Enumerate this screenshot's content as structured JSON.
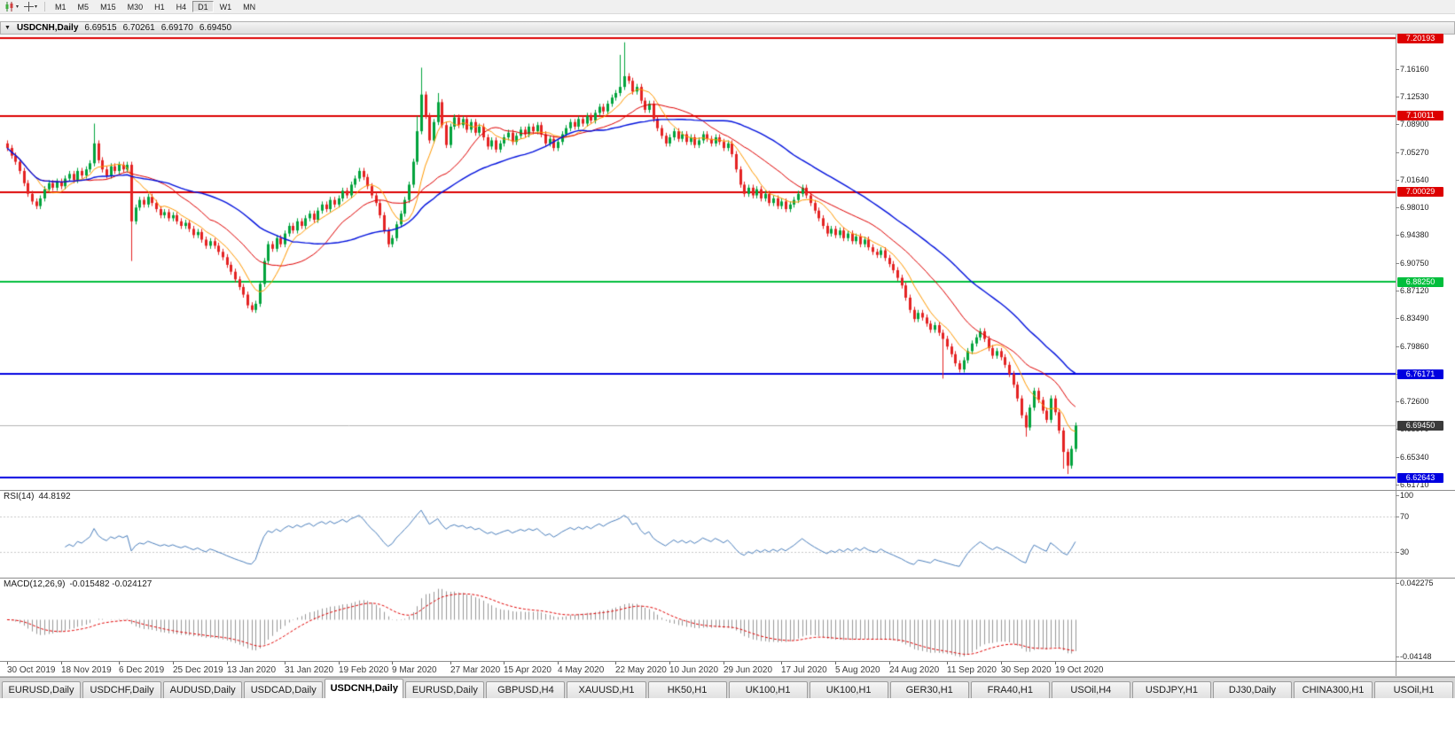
{
  "toolbar": {
    "icons": [
      {
        "name": "candlestick-chart-icon"
      },
      {
        "name": "crosshair-icon"
      }
    ],
    "timeframes": [
      "M1",
      "M5",
      "M15",
      "M30",
      "H1",
      "H4",
      "D1",
      "W1",
      "MN"
    ],
    "active_timeframe": "D1"
  },
  "window": {
    "title": "USDCNH,Daily",
    "ohlc": [
      "6.69515",
      "6.70261",
      "6.69170",
      "6.69450"
    ]
  },
  "chart_data": {
    "type": "candlestick",
    "symbol": "USDCNH",
    "timeframe": "Daily",
    "ylim": [
      6.6102,
      7.2066
    ],
    "grid": false,
    "first_open": 7.064,
    "closes": [
      7.058,
      7.048,
      7.04,
      7.028,
      7.012,
      6.998,
      6.988,
      6.982,
      6.992,
      7.004,
      7.012,
      7.006,
      7.014,
      7.008,
      7.018,
      7.024,
      7.016,
      7.028,
      7.022,
      7.03,
      7.038,
      7.064,
      7.042,
      7.03,
      7.022,
      7.034,
      7.028,
      7.036,
      7.03,
      7.036,
      6.962,
      6.98,
      6.99,
      6.984,
      6.994,
      6.986,
      6.978,
      6.97,
      6.974,
      6.966,
      6.97,
      6.962,
      6.956,
      6.96,
      6.952,
      6.944,
      6.948,
      6.938,
      6.93,
      6.936,
      6.93,
      6.922,
      6.915,
      6.905,
      6.896,
      6.886,
      6.876,
      6.866,
      6.852,
      6.846,
      6.854,
      6.88,
      6.91,
      6.932,
      6.926,
      6.94,
      6.932,
      6.946,
      6.956,
      6.95,
      6.962,
      6.956,
      6.966,
      6.972,
      6.964,
      6.976,
      6.984,
      6.978,
      6.99,
      6.984,
      6.992,
      7.002,
      6.996,
      7.01,
      7.018,
      7.028,
      7.02,
      7.008,
      6.996,
      6.986,
      6.97,
      6.95,
      6.932,
      6.94,
      6.958,
      6.972,
      6.99,
      7.01,
      7.04,
      7.08,
      7.128,
      7.1,
      7.068,
      7.092,
      7.118,
      7.088,
      7.062,
      7.086,
      7.098,
      7.088,
      7.096,
      7.082,
      7.092,
      7.078,
      7.086,
      7.072,
      7.06,
      7.068,
      7.056,
      7.064,
      7.072,
      7.078,
      7.066,
      7.074,
      7.082,
      7.076,
      7.086,
      7.08,
      7.088,
      7.076,
      7.064,
      7.07,
      7.058,
      7.066,
      7.076,
      7.084,
      7.092,
      7.086,
      7.096,
      7.09,
      7.1,
      7.094,
      7.104,
      7.112,
      7.106,
      7.116,
      7.124,
      7.13,
      7.138,
      7.152,
      7.146,
      7.132,
      7.138,
      7.12,
      7.108,
      7.116,
      7.096,
      7.084,
      7.074,
      7.064,
      7.072,
      7.08,
      7.07,
      7.076,
      7.066,
      7.072,
      7.062,
      7.068,
      7.076,
      7.07,
      7.064,
      7.072,
      7.066,
      7.058,
      7.064,
      7.05,
      7.03,
      7.01,
      6.998,
      7.006,
      6.996,
      7.004,
      6.992,
      6.998,
      6.986,
      6.992,
      6.982,
      6.988,
      6.978,
      6.984,
      6.99,
      6.998,
      7.006,
      6.996,
      6.986,
      6.976,
      6.966,
      6.956,
      6.946,
      6.952,
      6.944,
      6.95,
      6.94,
      6.946,
      6.936,
      6.942,
      6.932,
      6.938,
      6.928,
      6.922,
      6.918,
      6.924,
      6.914,
      6.906,
      6.898,
      6.888,
      6.878,
      6.862,
      6.846,
      6.834,
      6.842,
      6.836,
      6.828,
      6.82,
      6.826,
      6.816,
      6.808,
      6.798,
      6.788,
      6.776,
      6.768,
      6.78,
      6.792,
      6.802,
      6.81,
      6.818,
      6.808,
      6.796,
      6.786,
      6.792,
      6.784,
      6.774,
      6.762,
      6.748,
      6.73,
      6.708,
      6.692,
      6.718,
      6.74,
      6.728,
      6.714,
      6.702,
      6.73,
      6.712,
      6.688,
      6.66,
      6.642,
      6.664,
      6.6945
    ],
    "wicks": [
      {
        "i": 21,
        "h": 7.09
      },
      {
        "i": 30,
        "l": 6.91
      },
      {
        "i": 59,
        "l": 6.843
      },
      {
        "i": 99,
        "h": 7.1
      },
      {
        "i": 100,
        "h": 7.1632
      },
      {
        "i": 104,
        "h": 7.13
      },
      {
        "i": 148,
        "h": 7.18
      },
      {
        "i": 149,
        "h": 7.1964
      },
      {
        "i": 226,
        "l": 6.756
      },
      {
        "i": 246,
        "l": 6.68
      },
      {
        "i": 255,
        "l": 6.638
      },
      {
        "i": 256,
        "l": 6.631
      }
    ],
    "x_dates": [
      {
        "label": "30 Oct 2019",
        "i": 0
      },
      {
        "label": "18 Nov 2019",
        "i": 13
      },
      {
        "label": "6 Dec 2019",
        "i": 27
      },
      {
        "label": "25 Dec 2019",
        "i": 40
      },
      {
        "label": "13 Jan 2020",
        "i": 53
      },
      {
        "label": "31 Jan 2020",
        "i": 67
      },
      {
        "label": "19 Feb 2020",
        "i": 80
      },
      {
        "label": "9 Mar 2020",
        "i": 93
      },
      {
        "label": "27 Mar 2020",
        "i": 107
      },
      {
        "label": "15 Apr 2020",
        "i": 120
      },
      {
        "label": "4 May 2020",
        "i": 133
      },
      {
        "label": "22 May 2020",
        "i": 147
      },
      {
        "label": "10 Jun 2020",
        "i": 160
      },
      {
        "label": "29 Jun 2020",
        "i": 173
      },
      {
        "label": "17 Jul 2020",
        "i": 187
      },
      {
        "label": "5 Aug 2020",
        "i": 200
      },
      {
        "label": "24 Aug 2020",
        "i": 213
      },
      {
        "label": "11 Sep 2020",
        "i": 227
      },
      {
        "label": "30 Sep 2020",
        "i": 240
      },
      {
        "label": "19 Oct 2020",
        "i": 253
      }
    ],
    "moving_averages": [
      {
        "period": 8,
        "color": "#FF9900",
        "width": 1
      },
      {
        "period": 20,
        "color": "#E00000",
        "width": 1
      },
      {
        "period": 40,
        "color": "#0010DD",
        "width": 1.4
      }
    ],
    "hlines": [
      {
        "label": "7.20193",
        "value": 7.20193,
        "color": "#DD0000"
      },
      {
        "label": "7.10011",
        "value": 7.10011,
        "color": "#DD0000"
      },
      {
        "label": "7.00029",
        "value": 7.00029,
        "color": "#DD0000"
      },
      {
        "label": "6.88250",
        "value": 6.8825,
        "color": "#00BE3C"
      },
      {
        "label": "6.76171",
        "value": 6.76171,
        "color": "#0000E0"
      },
      {
        "label": "6.62643",
        "value": 6.62643,
        "color": "#0000E0"
      }
    ],
    "current_price": {
      "label": "6.69450",
      "value": 6.6945,
      "color": "#3A3A3A"
    },
    "y_axis_labels": [
      "7.16160",
      "7.12530",
      "7.08900",
      "7.05270",
      "7.01640",
      "6.98010",
      "6.94380",
      "6.90750",
      "6.87120",
      "6.83490",
      "6.79860",
      "6.76230",
      "6.72600",
      "6.68970",
      "6.65340",
      "6.61710"
    ],
    "rsi": {
      "label": "RSI(14)",
      "value": "44.8192",
      "period": 14,
      "ylim": [
        0,
        100
      ],
      "levels": [
        70,
        30
      ],
      "axis_labels": [
        "100",
        "70",
        "30"
      ],
      "color": "#4A7EBB"
    },
    "macd": {
      "label": "MACD(12,26,9)",
      "values": "-0.015482 -0.024127",
      "fast": 12,
      "slow": 26,
      "signal": 9,
      "ylim": [
        -0.046,
        0.046
      ],
      "axis_labels": [
        "0.042275",
        "-0.04148"
      ],
      "hist_color": "#979797",
      "signal_color": "#E00000"
    }
  },
  "tabs": {
    "active_index": 4,
    "items": [
      {
        "label": "EURUSD,Daily"
      },
      {
        "label": "USDCHF,Daily"
      },
      {
        "label": "AUDUSD,Daily"
      },
      {
        "label": "USDCAD,Daily"
      },
      {
        "label": "USDCNH,Daily"
      },
      {
        "label": "EURUSD,Daily"
      },
      {
        "label": "GBPUSD,H4"
      },
      {
        "label": "XAUUSD,H1"
      },
      {
        "label": "HK50,H1"
      },
      {
        "label": "UK100,H1"
      },
      {
        "label": "UK100,H1"
      },
      {
        "label": "GER30,H1"
      },
      {
        "label": "FRA40,H1"
      },
      {
        "label": "USOil,H4"
      },
      {
        "label": "USDJPY,H1"
      },
      {
        "label": "DJ30,Daily"
      },
      {
        "label": "CHINA300,H1"
      },
      {
        "label": "USOil,H1"
      }
    ]
  }
}
